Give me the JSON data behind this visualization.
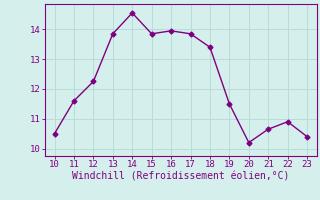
{
  "x": [
    10,
    11,
    12,
    13,
    14,
    15,
    16,
    17,
    18,
    19,
    20,
    21,
    22,
    23
  ],
  "y": [
    10.5,
    11.6,
    12.25,
    13.85,
    14.55,
    13.85,
    13.95,
    13.85,
    13.4,
    11.5,
    10.2,
    10.65,
    10.9,
    10.4
  ],
  "line_color": "#800080",
  "marker": "D",
  "marker_size": 2.5,
  "bg_color": "#d5f0ec",
  "grid_color": "#b8ddd8",
  "xlabel": "Windchill (Refroidissement éolien,°C)",
  "xlabel_color": "#800080",
  "tick_color": "#800080",
  "xlim": [
    9.5,
    23.5
  ],
  "ylim": [
    9.75,
    14.85
  ],
  "xticks": [
    10,
    11,
    12,
    13,
    14,
    15,
    16,
    17,
    18,
    19,
    20,
    21,
    22,
    23
  ],
  "yticks": [
    10,
    11,
    12,
    13,
    14
  ],
  "line_width": 1.0,
  "spine_color": "#800080"
}
